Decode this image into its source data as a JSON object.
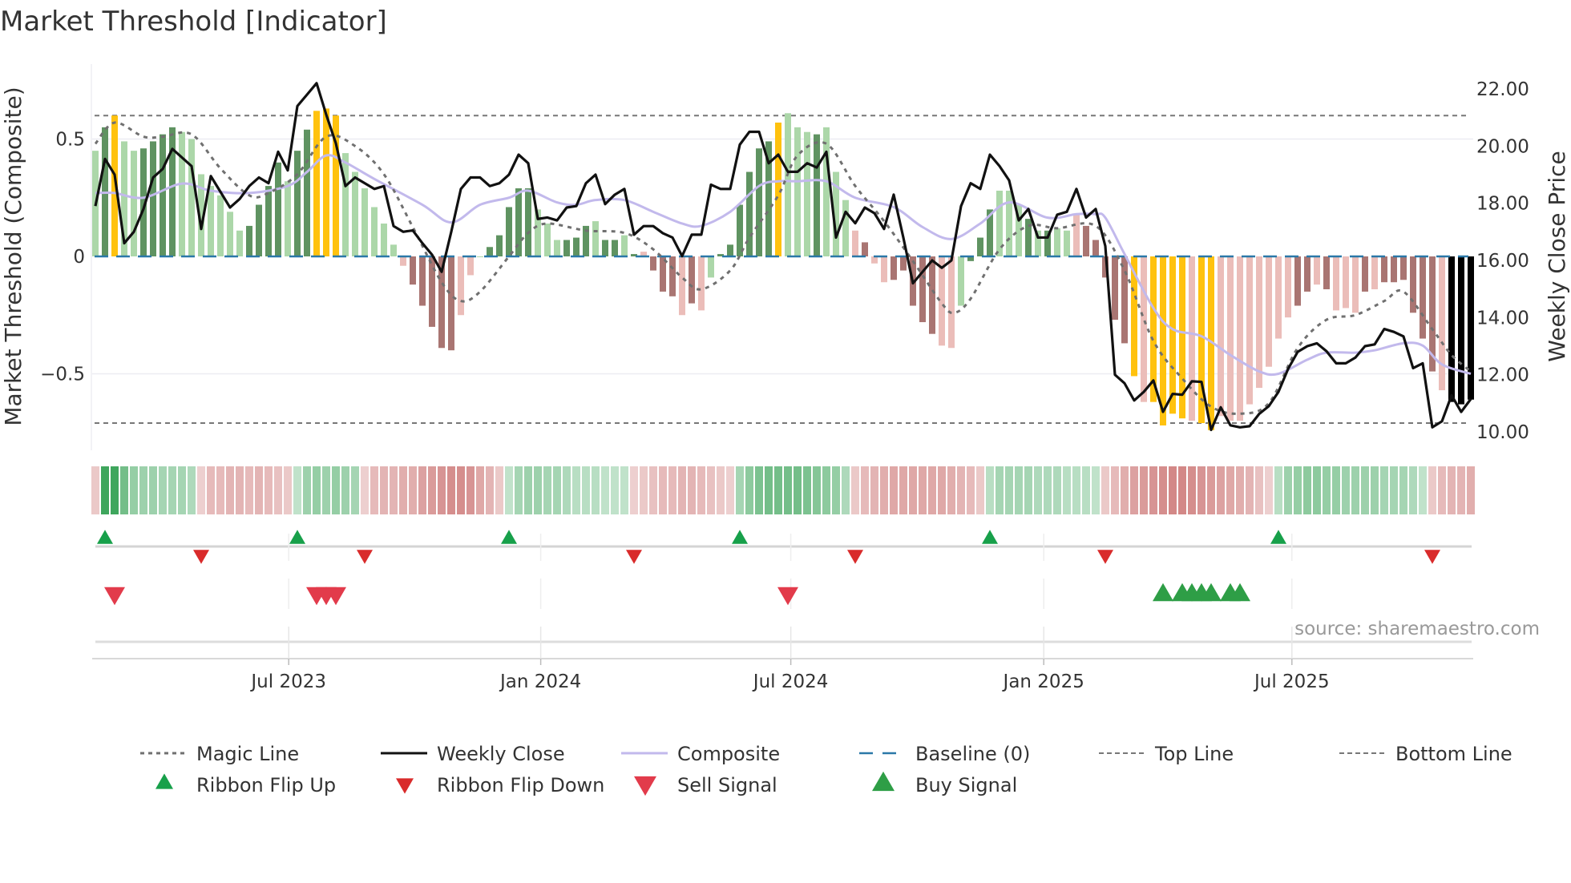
{
  "chart_data": {
    "type": "bar",
    "title": "Market Threshold [Indicator]",
    "ylabel_left": "Market Threshold (Composite)",
    "ylabel_right": "Weekly Close Price",
    "source": "source: sharemaestro.com",
    "x_unit": "week index",
    "ylim_left": [
      -0.82,
      0.78
    ],
    "ylim_right": [
      9.3,
      23.0
    ],
    "left_ticks": [
      {
        "v": 0.5,
        "label": "0.5"
      },
      {
        "v": 0,
        "label": "0"
      },
      {
        "v": -0.5,
        "label": "−0.5"
      }
    ],
    "right_ticks": [
      {
        "v": 22,
        "label": "22.00"
      },
      {
        "v": 20,
        "label": "20.00"
      },
      {
        "v": 18,
        "label": "18.00"
      },
      {
        "v": 16,
        "label": "16.00"
      },
      {
        "v": 14,
        "label": "14.00"
      },
      {
        "v": 12,
        "label": "12.00"
      },
      {
        "v": 10,
        "label": "10.00"
      }
    ],
    "x_ticks": [
      {
        "week": 20.1,
        "label": "Jul 2023"
      },
      {
        "week": 46.3,
        "label": "Jan 2024"
      },
      {
        "week": 72.3,
        "label": "Jul 2024"
      },
      {
        "week": 98.6,
        "label": "Jan 2025"
      },
      {
        "week": 124.4,
        "label": "Jul 2025"
      }
    ],
    "top_line": 0.6,
    "bottom_line": -0.71,
    "baseline": 0,
    "colors": {
      "G": "#5f9361",
      "g": "#acd7a9",
      "Y": "#ffc20e",
      "R": "#a97572",
      "r": "#ebbdb9",
      "ribbon_up": "#2f9e4f",
      "ribbon_down": "#c4605f",
      "close": "#111111",
      "composite": "#c2b9ec",
      "magic": "#707070",
      "baseline": "#2a78a8",
      "flip_up": "#17a04a",
      "flip_down": "#d92b2b",
      "sell": "#e23b4b",
      "buy": "#2e9e46"
    },
    "bars": {
      "values": [
        0.45,
        0.55,
        0.6,
        0.49,
        0.45,
        0.46,
        0.49,
        0.52,
        0.55,
        0.53,
        0.5,
        0.35,
        0.3,
        0.26,
        0.19,
        0.11,
        0.13,
        0.22,
        0.3,
        0.4,
        0.32,
        0.45,
        0.54,
        0.62,
        0.63,
        0.6,
        0.44,
        0.36,
        0.29,
        0.21,
        0.14,
        0.05,
        -0.04,
        -0.12,
        -0.21,
        -0.3,
        -0.39,
        -0.4,
        -0.25,
        -0.08,
        0.0,
        0.04,
        0.09,
        0.21,
        0.29,
        0.29,
        0.2,
        0.14,
        0.07,
        0.07,
        0.08,
        0.13,
        0.15,
        0.07,
        0.07,
        0.09,
        0.01,
        0.02,
        -0.06,
        -0.15,
        -0.17,
        -0.25,
        -0.2,
        -0.23,
        -0.09,
        0.01,
        0.05,
        0.22,
        0.36,
        0.46,
        0.49,
        0.57,
        0.61,
        0.55,
        0.53,
        0.52,
        0.55,
        0.36,
        0.24,
        0.11,
        0.06,
        -0.03,
        -0.11,
        -0.1,
        -0.06,
        -0.21,
        -0.28,
        -0.33,
        -0.38,
        -0.39,
        -0.21,
        -0.02,
        0.08,
        0.2,
        0.28,
        0.28,
        0.22,
        0.16,
        0.11,
        0.11,
        0.12,
        0.11,
        0.18,
        0.13,
        0.07,
        -0.09,
        -0.27,
        -0.37,
        -0.51,
        -0.62,
        -0.62,
        -0.72,
        -0.67,
        -0.69,
        -0.7,
        -0.71,
        -0.74,
        -0.68,
        -0.7,
        -0.7,
        -0.63,
        -0.56,
        -0.47,
        -0.35,
        -0.26,
        -0.21,
        -0.15,
        -0.12,
        -0.14,
        -0.23,
        -0.22,
        -0.24,
        -0.15,
        -0.14,
        -0.11,
        -0.11,
        -0.1,
        -0.24,
        -0.35,
        -0.49,
        -0.57,
        -0.62,
        -0.63,
        -0.61
      ],
      "tone": "gGYggGGGGgggggggGGGGgGGYYYggggggrRRRRRrrgGGGGGgggGGGgGGgGrRRRrRrgGGGGGGYgggGgggrRrrRRRRRrrgGGGgggGgGggrRRRRRYrYYYYrYYrrrrrrrrRRrRrrrRrRRRRRRr"
    },
    "weekly_close": [
      17.9,
      19.55,
      19.0,
      16.6,
      17.0,
      17.8,
      18.9,
      19.2,
      19.9,
      19.6,
      19.3,
      17.1,
      18.95,
      18.4,
      17.85,
      18.15,
      18.6,
      18.9,
      18.7,
      19.8,
      19.15,
      21.4,
      21.8,
      22.2,
      21.1,
      20.1,
      18.6,
      18.9,
      18.7,
      18.5,
      18.6,
      17.2,
      17.0,
      17.05,
      16.6,
      16.2,
      15.6,
      17.0,
      18.5,
      18.9,
      18.9,
      18.6,
      18.7,
      19.0,
      19.7,
      19.4,
      17.45,
      17.5,
      17.4,
      17.85,
      17.9,
      18.7,
      19.0,
      17.97,
      18.3,
      18.5,
      16.9,
      17.2,
      17.2,
      16.95,
      16.8,
      16.15,
      16.9,
      16.9,
      18.65,
      18.5,
      18.5,
      20.05,
      20.5,
      20.5,
      19.4,
      19.7,
      19.1,
      19.1,
      19.4,
      19.25,
      19.8,
      16.8,
      17.7,
      17.3,
      17.85,
      17.65,
      17.1,
      18.3,
      16.8,
      15.2,
      15.6,
      16.0,
      15.74,
      16.0,
      17.9,
      18.7,
      18.5,
      19.7,
      19.3,
      18.8,
      17.4,
      17.8,
      16.8,
      16.8,
      17.6,
      17.7,
      18.5,
      17.5,
      17.8,
      16.5,
      12.0,
      11.7,
      11.1,
      11.4,
      11.8,
      10.7,
      11.33,
      11.3,
      11.77,
      11.75,
      10.07,
      10.86,
      10.23,
      10.16,
      10.2,
      10.63,
      10.9,
      11.4,
      12.2,
      12.8,
      13.0,
      13.1,
      12.82,
      12.4,
      12.4,
      12.6,
      13.0,
      13.06,
      13.6,
      13.5,
      13.34,
      12.23,
      12.4,
      10.16,
      10.37,
      11.28,
      10.7,
      11.15
    ],
    "composite": [
      [
        0,
        0.27
      ],
      [
        2,
        0.27
      ],
      [
        5,
        0.25
      ],
      [
        9,
        0.31
      ],
      [
        12,
        0.28
      ],
      [
        16,
        0.27
      ],
      [
        20,
        0.3
      ],
      [
        22,
        0.36
      ],
      [
        24,
        0.43
      ],
      [
        26,
        0.4
      ],
      [
        29,
        0.33
      ],
      [
        34,
        0.22
      ],
      [
        37,
        0.145
      ],
      [
        40,
        0.22
      ],
      [
        43,
        0.25
      ],
      [
        45,
        0.28
      ],
      [
        48,
        0.23
      ],
      [
        50,
        0.22
      ],
      [
        52,
        0.24
      ],
      [
        55,
        0.24
      ],
      [
        58,
        0.19
      ],
      [
        61,
        0.14
      ],
      [
        63,
        0.13
      ],
      [
        66,
        0.19
      ],
      [
        69,
        0.3
      ],
      [
        71,
        0.32
      ],
      [
        73,
        0.32
      ],
      [
        76,
        0.32
      ],
      [
        79,
        0.25
      ],
      [
        83,
        0.21
      ],
      [
        86,
        0.125
      ],
      [
        89,
        0.074
      ],
      [
        92,
        0.14
      ],
      [
        95,
        0.23
      ],
      [
        99,
        0.165
      ],
      [
        102,
        0.18
      ],
      [
        104,
        0.18
      ],
      [
        105,
        0.165
      ],
      [
        107,
        0.01
      ],
      [
        110,
        -0.22
      ],
      [
        112,
        -0.31
      ],
      [
        115,
        -0.34
      ],
      [
        118,
        -0.42
      ],
      [
        121,
        -0.49
      ],
      [
        123,
        -0.5
      ],
      [
        126,
        -0.44
      ],
      [
        128,
        -0.41
      ],
      [
        131,
        -0.41
      ],
      [
        133,
        -0.4
      ],
      [
        136,
        -0.37
      ],
      [
        138,
        -0.38
      ],
      [
        140,
        -0.46
      ],
      [
        143,
        -0.5
      ]
    ],
    "magic_line": [
      [
        0,
        0.48
      ],
      [
        2,
        0.57
      ],
      [
        5,
        0.51
      ],
      [
        7,
        0.51
      ],
      [
        10,
        0.52
      ],
      [
        13,
        0.375
      ],
      [
        16,
        0.26
      ],
      [
        18,
        0.27
      ],
      [
        21,
        0.35
      ],
      [
        24,
        0.51
      ],
      [
        27,
        0.47
      ],
      [
        30,
        0.35
      ],
      [
        33,
        0.125
      ],
      [
        36,
        -0.11
      ],
      [
        38,
        -0.19
      ],
      [
        40,
        -0.15
      ],
      [
        43,
        0.0
      ],
      [
        45,
        0.1
      ],
      [
        47,
        0.14
      ],
      [
        51,
        0.11
      ],
      [
        55,
        0.1
      ],
      [
        58,
        0.03
      ],
      [
        61,
        -0.09
      ],
      [
        63,
        -0.14
      ],
      [
        66,
        -0.06
      ],
      [
        68,
        0.08
      ],
      [
        71,
        0.26
      ],
      [
        73,
        0.43
      ],
      [
        76,
        0.48
      ],
      [
        79,
        0.3
      ],
      [
        82,
        0.15
      ],
      [
        85,
        -0.02
      ],
      [
        88,
        -0.2
      ],
      [
        89.3,
        -0.24
      ],
      [
        91,
        -0.18
      ],
      [
        94,
        0.03
      ],
      [
        97,
        0.13
      ],
      [
        100,
        0.12
      ],
      [
        104,
        0.13
      ],
      [
        107,
        -0.06
      ],
      [
        110,
        -0.36
      ],
      [
        113,
        -0.52
      ],
      [
        116,
        -0.64
      ],
      [
        119,
        -0.67
      ],
      [
        122,
        -0.625
      ],
      [
        125,
        -0.39
      ],
      [
        128,
        -0.27
      ],
      [
        131,
        -0.25
      ],
      [
        134,
        -0.19
      ],
      [
        136,
        -0.15
      ],
      [
        139,
        -0.31
      ],
      [
        141,
        -0.42
      ],
      [
        143,
        -0.49
      ]
    ],
    "ribbon": [
      -0.2,
      0.9,
      0.9,
      0.6,
      0.4,
      0.35,
      0.35,
      0.3,
      0.3,
      0.3,
      0.25,
      -0.15,
      -0.3,
      -0.3,
      -0.35,
      -0.35,
      -0.3,
      -0.35,
      -0.3,
      -0.25,
      -0.2,
      0.15,
      0.35,
      0.4,
      0.35,
      0.4,
      0.35,
      0.3,
      -0.15,
      -0.3,
      -0.35,
      -0.35,
      -0.4,
      -0.4,
      -0.5,
      -0.55,
      -0.6,
      -0.65,
      -0.65,
      -0.6,
      -0.45,
      -0.35,
      -0.2,
      0.15,
      0.3,
      0.35,
      0.35,
      0.3,
      0.3,
      0.25,
      0.2,
      0.2,
      0.2,
      0.15,
      0.15,
      0.15,
      -0.15,
      -0.2,
      -0.25,
      -0.3,
      -0.3,
      -0.35,
      -0.35,
      -0.3,
      -0.25,
      -0.2,
      -0.15,
      0.3,
      0.45,
      0.55,
      0.6,
      0.6,
      0.6,
      0.6,
      0.55,
      0.5,
      0.45,
      0.4,
      0.25,
      -0.2,
      -0.3,
      -0.35,
      -0.4,
      -0.45,
      -0.45,
      -0.45,
      -0.45,
      -0.45,
      -0.45,
      -0.4,
      -0.35,
      -0.3,
      -0.2,
      0.2,
      0.3,
      0.3,
      0.3,
      0.3,
      0.25,
      0.25,
      0.25,
      0.2,
      0.2,
      0.2,
      0.15,
      -0.2,
      -0.3,
      -0.4,
      -0.5,
      -0.55,
      -0.6,
      -0.65,
      -0.7,
      -0.7,
      -0.65,
      -0.6,
      -0.55,
      -0.5,
      -0.45,
      -0.4,
      -0.35,
      -0.25,
      -0.15,
      0.2,
      0.35,
      0.4,
      0.45,
      0.45,
      0.4,
      0.4,
      0.35,
      0.35,
      0.35,
      0.35,
      0.3,
      0.3,
      0.3,
      0.25,
      0.15,
      -0.2,
      -0.3,
      -0.35,
      -0.35,
      -0.4
    ],
    "ribbon_flip_up": [
      1,
      21,
      43,
      67,
      93,
      123
    ],
    "ribbon_flip_down": [
      11,
      28,
      56,
      79,
      105,
      139
    ],
    "sell_signals": [
      2,
      23,
      24,
      25,
      72
    ],
    "buy_signals": [
      111,
      113,
      114,
      115,
      116,
      118,
      119
    ],
    "legend": [
      {
        "key": "magic",
        "label": "Magic Line"
      },
      {
        "key": "close",
        "label": "Weekly Close"
      },
      {
        "key": "composite",
        "label": "Composite"
      },
      {
        "key": "baseline",
        "label": "Baseline (0)"
      },
      {
        "key": "top",
        "label": "Top Line"
      },
      {
        "key": "bottom",
        "label": "Bottom Line"
      },
      {
        "key": "flip_up",
        "label": "Ribbon Flip Up"
      },
      {
        "key": "flip_down",
        "label": "Ribbon Flip Down"
      },
      {
        "key": "sell",
        "label": "Sell Signal"
      },
      {
        "key": "buy",
        "label": "Buy Signal"
      }
    ],
    "legend_position": "bottom"
  }
}
